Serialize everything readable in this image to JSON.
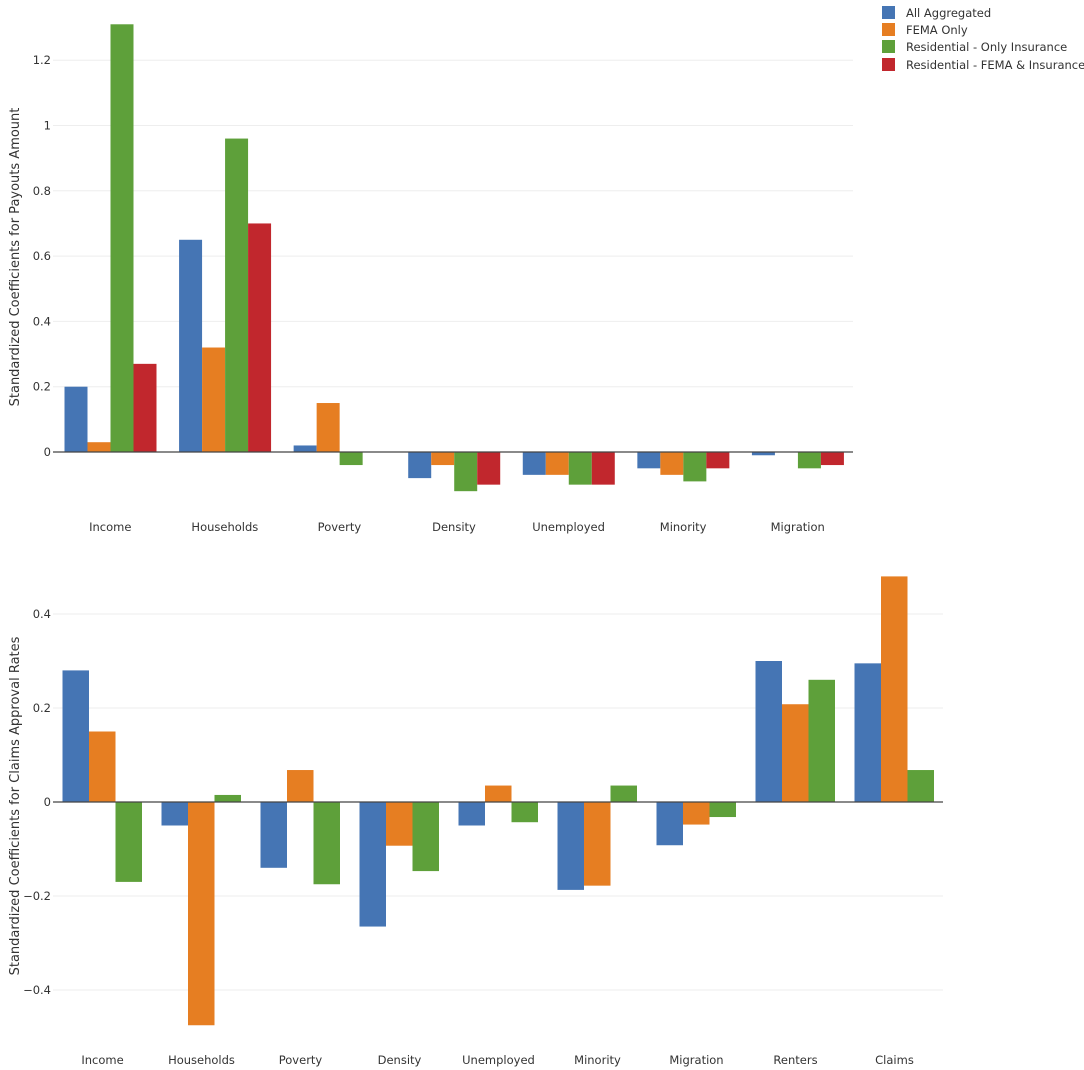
{
  "colors": {
    "all_aggregated": "#4575b4",
    "fema_only": "#e67e22",
    "residential_only_insurance": "#5ea03a",
    "residential_fema_insurance": "#c1272d"
  },
  "legend": {
    "entries": [
      "All Aggregated",
      "FEMA Only",
      "Residential - Only Insurance",
      "Residential - FEMA & Insurance"
    ]
  },
  "chart_data": [
    {
      "type": "bar",
      "title": "",
      "xlabel": "",
      "ylabel": "Standardized Coefficients for Payouts Amount",
      "ylim": [
        -0.13,
        1.33
      ],
      "yticks": [
        0,
        0.2,
        0.4,
        0.6,
        0.8,
        1,
        1.2
      ],
      "ytick_labels": [
        "0",
        "0.2",
        "0.4",
        "0.6",
        "0.8",
        "1",
        "1.2"
      ],
      "categories": [
        "Income",
        "Households",
        "Poverty",
        "Density",
        "Unemployed",
        "Minority",
        "Migration"
      ],
      "series": [
        {
          "name": "All Aggregated",
          "values": [
            0.2,
            0.65,
            0.02,
            -0.08,
            -0.07,
            -0.05,
            -0.01
          ]
        },
        {
          "name": "FEMA Only",
          "values": [
            0.03,
            0.32,
            0.15,
            -0.04,
            -0.07,
            -0.07,
            null
          ]
        },
        {
          "name": "Residential - Only Insurance",
          "values": [
            1.31,
            0.96,
            -0.04,
            -0.12,
            -0.1,
            -0.09,
            -0.05
          ]
        },
        {
          "name": "Residential - FEMA & Insurance",
          "values": [
            0.27,
            0.7,
            null,
            -0.1,
            -0.1,
            -0.05,
            -0.04
          ]
        }
      ]
    },
    {
      "type": "bar",
      "title": "",
      "xlabel": "",
      "ylabel": "Standardized Coefficients for Claims Approval Rates",
      "ylim": [
        -0.5,
        0.5
      ],
      "yticks": [
        -0.4,
        -0.2,
        0,
        0.2,
        0.4
      ],
      "ytick_labels": [
        "−0.4",
        "−0.2",
        "0",
        "0.2",
        "0.4"
      ],
      "categories": [
        "Income",
        "Households",
        "Poverty",
        "Density",
        "Unemployed",
        "Minority",
        "Migration",
        "Renters",
        "Claims"
      ],
      "series": [
        {
          "name": "All Aggregated",
          "values": [
            0.28,
            -0.05,
            -0.14,
            -0.265,
            -0.05,
            -0.187,
            -0.092,
            0.3,
            0.295
          ]
        },
        {
          "name": "FEMA Only",
          "values": [
            0.15,
            -0.475,
            0.068,
            -0.093,
            0.035,
            -0.178,
            -0.048,
            0.208,
            0.48
          ]
        },
        {
          "name": "Residential - Only Insurance",
          "values": [
            -0.17,
            0.015,
            -0.175,
            -0.147,
            -0.043,
            0.035,
            -0.032,
            0.26,
            0.068
          ]
        }
      ]
    }
  ]
}
